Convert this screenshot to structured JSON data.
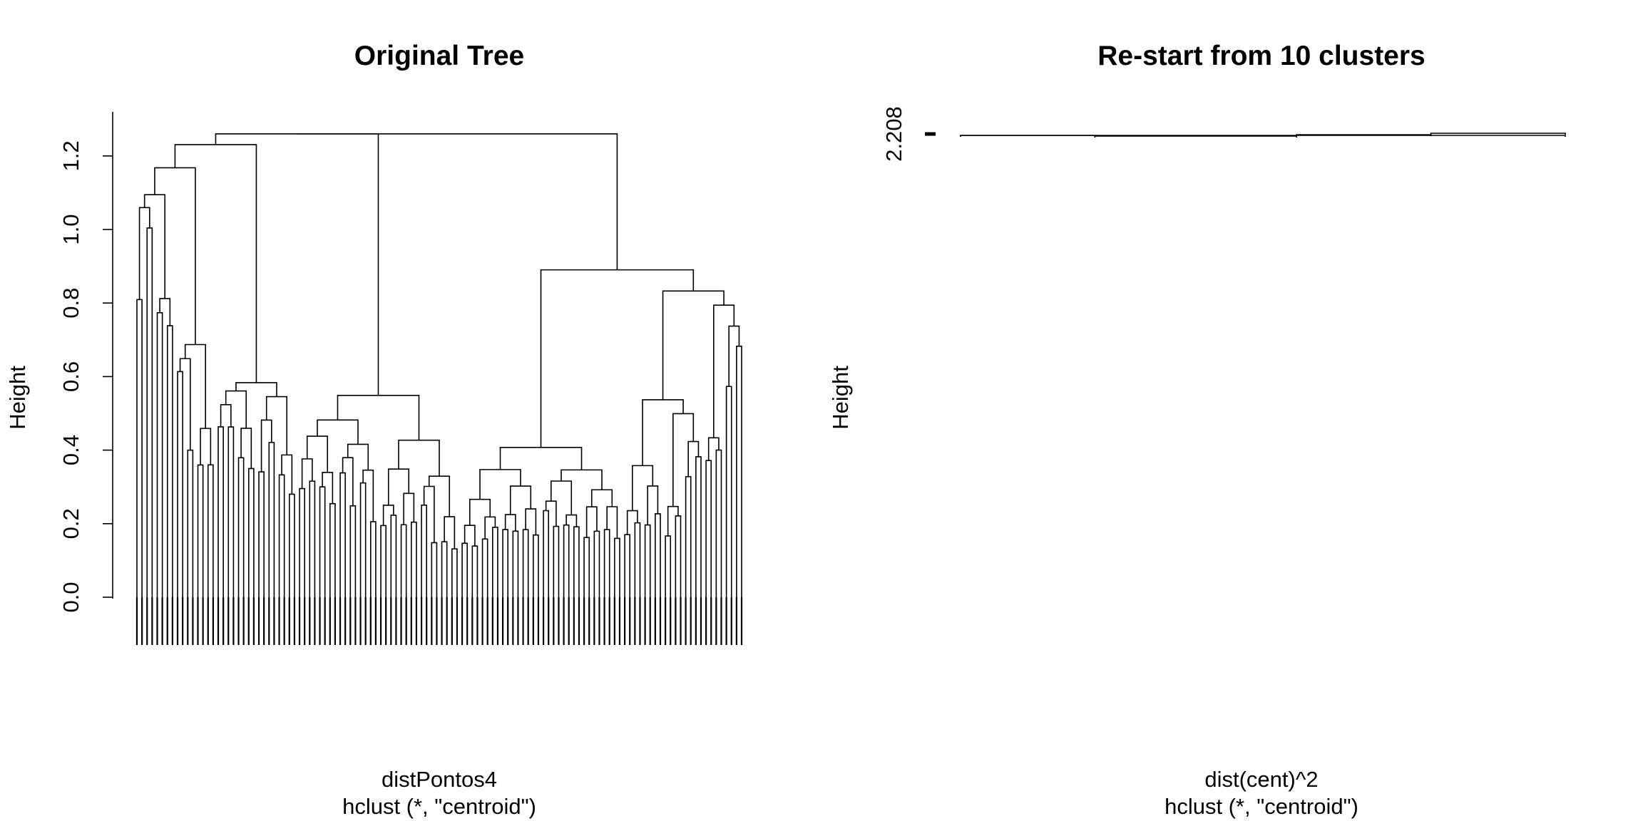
{
  "chart_data": [
    {
      "type": "dendrogram",
      "title": "Original Tree",
      "xlabel": "distPontos4",
      "sub": "hclust (*, \"centroid\")",
      "ylabel": "Height",
      "yticks": [
        0.0,
        0.2,
        0.4,
        0.6,
        0.8,
        1.0,
        1.2
      ],
      "ytick_labels": [
        "0.0",
        "0.2",
        "0.4",
        "0.6",
        "0.8",
        "1.0",
        "1.2"
      ],
      "ylim": [
        0.0,
        1.3
      ],
      "max_merge_height": 1.26,
      "approx_leaf_count": 120,
      "right_cluster_max_height": 0.92,
      "root_merge_height": 0.91,
      "grid": false,
      "legend": "none"
    },
    {
      "type": "dendrogram",
      "title": "Re-start from 10 clusters",
      "xlabel": "dist(cent)^2",
      "sub": "hclust (*, \"centroid\")",
      "ylabel": "Height",
      "yticks": [
        2.208
      ],
      "ytick_labels": [
        "2.208"
      ],
      "leaf_count": 10,
      "merge_height": 2.208,
      "grid": false,
      "legend": "none"
    }
  ]
}
